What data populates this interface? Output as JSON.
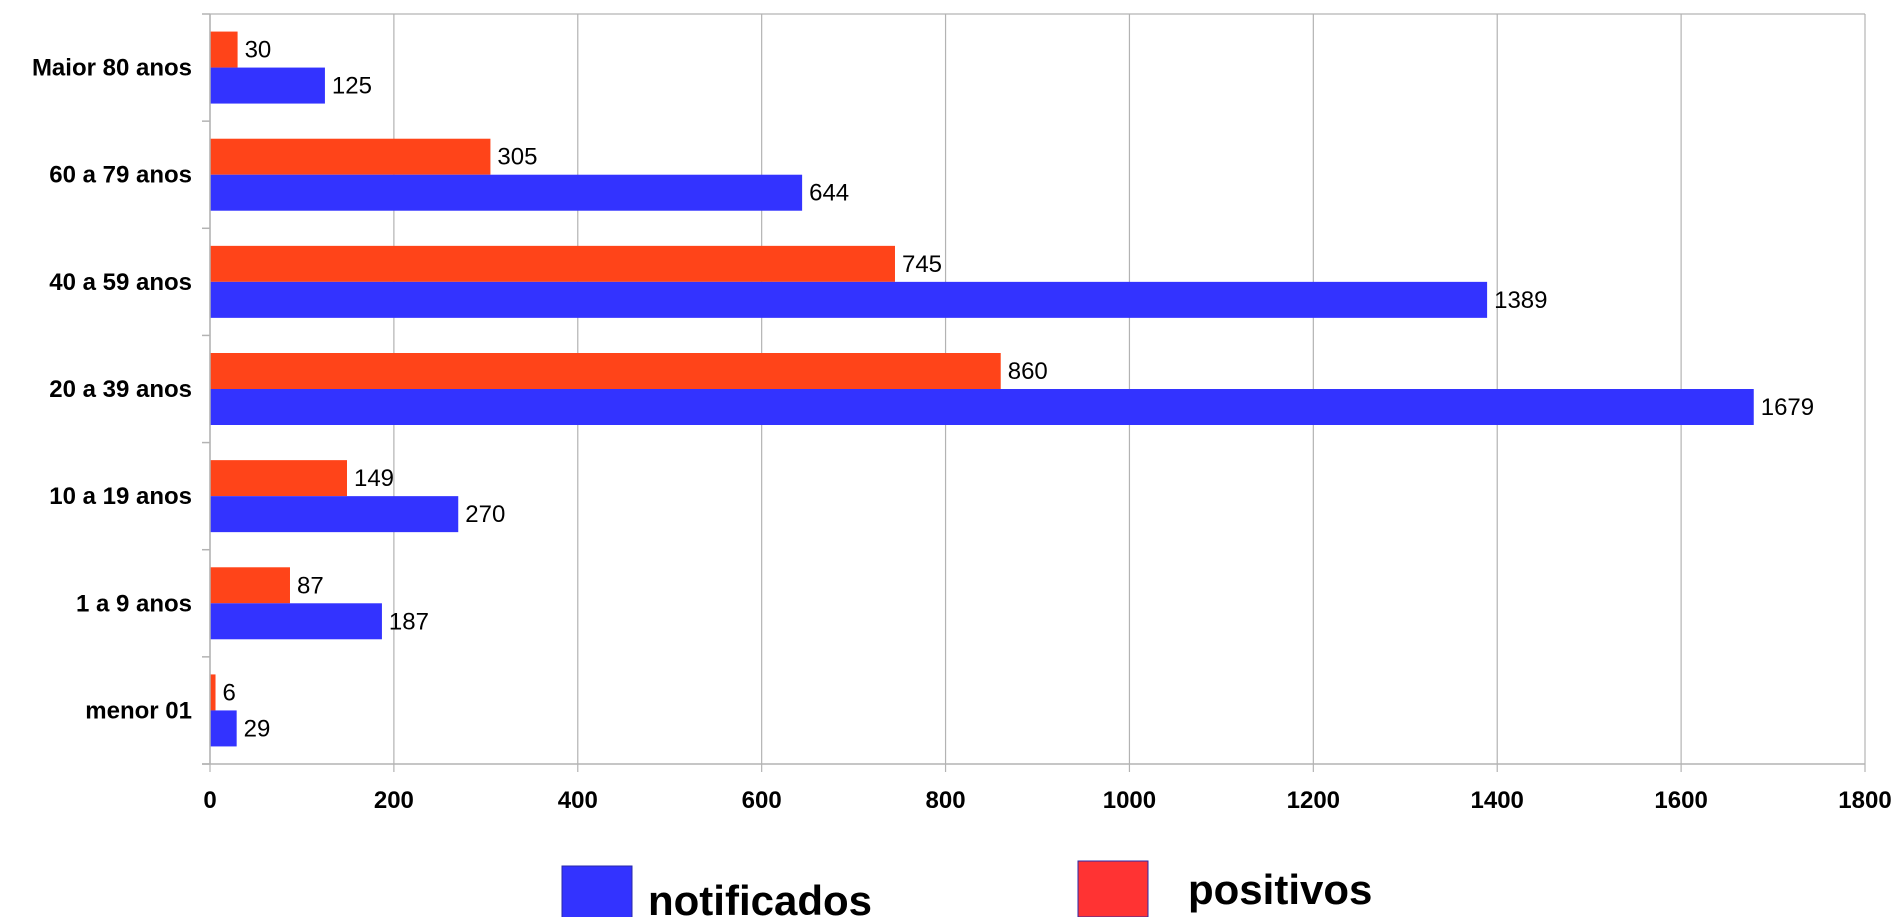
{
  "chart_data": {
    "type": "bar",
    "orientation": "horizontal",
    "categories": [
      "Maior 80 anos",
      "60 a 79 anos",
      "40 a 59 anos",
      "20 a 39 anos",
      "10 a 19 anos",
      "1 a 9 anos",
      "menor 01"
    ],
    "series": [
      {
        "name": "positivos",
        "color": "#ff4419",
        "legend_color": "#ff3333",
        "values": [
          30,
          305,
          745,
          860,
          149,
          87,
          6
        ]
      },
      {
        "name": "notificados",
        "color": "#3333ff",
        "legend_color": "#3333ff",
        "values": [
          125,
          644,
          1389,
          1679,
          270,
          187,
          29
        ]
      }
    ],
    "xlim": [
      0,
      1800
    ],
    "xticks": [
      0,
      200,
      400,
      600,
      800,
      1000,
      1200,
      1400,
      1600,
      1800
    ],
    "grid": true,
    "data_labels": true,
    "legend_position": "bottom",
    "title": "",
    "xlabel": "",
    "ylabel": ""
  }
}
